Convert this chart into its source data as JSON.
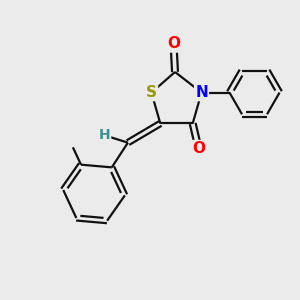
{
  "bg_color": "#ebebeb",
  "atom_colors": {
    "S": "#999900",
    "N": "#0000ff",
    "O": "#ff0000",
    "C": "#000000",
    "H": "#3d9090"
  },
  "bond_color": "#111111",
  "lw": 1.6
}
